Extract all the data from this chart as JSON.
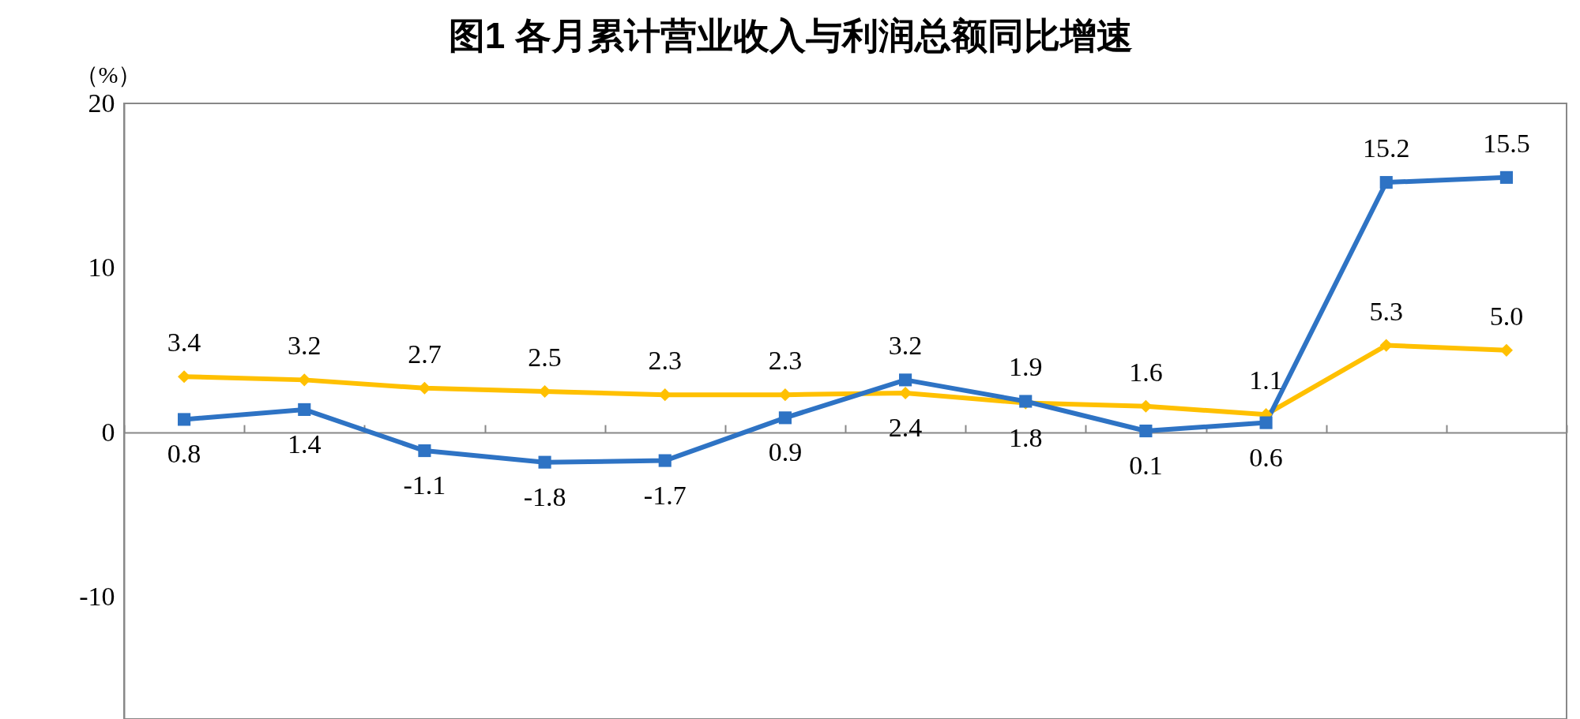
{
  "chart_data": {
    "type": "line",
    "title": "图1  各月累计营业收入与利润总额同比增速",
    "ylabel": "（%）",
    "categories": [
      null,
      null,
      null,
      null,
      null,
      null,
      null,
      null,
      null,
      null,
      null,
      null
    ],
    "series": [
      {
        "color": "#ffc000",
        "marker": "diamond",
        "values": [
          3.4,
          3.2,
          2.7,
          2.5,
          2.3,
          2.3,
          2.4,
          1.8,
          1.6,
          1.1,
          5.3,
          5.0
        ],
        "value_labels": [
          "3.4",
          "3.2",
          "2.7",
          "2.5",
          "2.3",
          "2.3",
          "2.4",
          "1.8",
          "1.6",
          "1.1",
          "5.3",
          "5.0"
        ]
      },
      {
        "color": "#2e73c4",
        "marker": "square",
        "values": [
          0.8,
          1.4,
          -1.1,
          -1.8,
          -1.7,
          0.9,
          3.2,
          1.9,
          0.1,
          0.6,
          15.2,
          15.5
        ],
        "value_labels": [
          "0.8",
          "1.4",
          "-1.1",
          "-1.8",
          "-1.7",
          "0.9",
          "3.2",
          "1.9",
          "0.1",
          "0.6",
          "15.2",
          "15.5"
        ]
      }
    ],
    "ylim": [
      -17.4,
      20
    ],
    "yticks": [
      -10,
      0,
      10,
      20
    ],
    "legend": false,
    "tick_labels": "y",
    "line_style": "solid"
  }
}
